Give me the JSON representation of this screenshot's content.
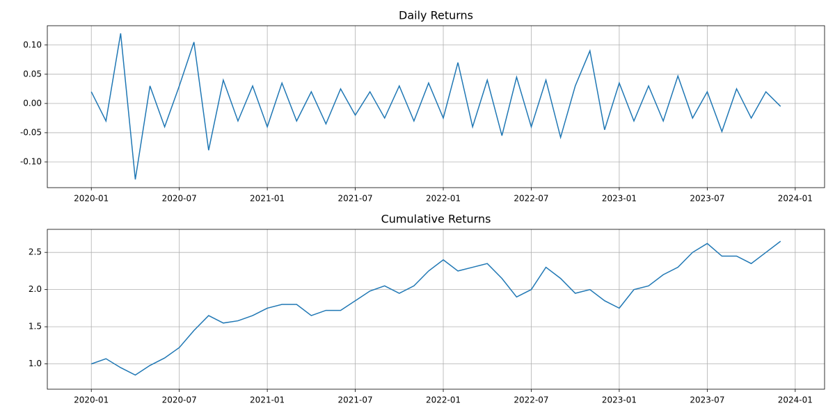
{
  "chart_data": [
    {
      "type": "line",
      "title": "Daily Returns",
      "color": "#1f77b4",
      "grid": true,
      "x": [
        "2020-01",
        "2020-02",
        "2020-03",
        "2020-04",
        "2020-05",
        "2020-06",
        "2020-07",
        "2020-08",
        "2020-09",
        "2020-10",
        "2020-11",
        "2020-12",
        "2021-01",
        "2021-02",
        "2021-03",
        "2021-04",
        "2021-05",
        "2021-06",
        "2021-07",
        "2021-08",
        "2021-09",
        "2021-10",
        "2021-11",
        "2021-12",
        "2022-01",
        "2022-02",
        "2022-03",
        "2022-04",
        "2022-05",
        "2022-06",
        "2022-07",
        "2022-08",
        "2022-09",
        "2022-10",
        "2022-11",
        "2022-12",
        "2023-01",
        "2023-02",
        "2023-03",
        "2023-04",
        "2023-05",
        "2023-06",
        "2023-07",
        "2023-08",
        "2023-09",
        "2023-10",
        "2023-11",
        "2023-12"
      ],
      "values": [
        0.02,
        -0.03,
        0.12,
        -0.13,
        0.03,
        -0.04,
        0.03,
        0.105,
        -0.08,
        0.04,
        -0.03,
        0.03,
        -0.04,
        0.035,
        -0.03,
        0.02,
        -0.035,
        0.025,
        -0.02,
        0.02,
        -0.025,
        0.03,
        -0.03,
        0.035,
        -0.025,
        0.07,
        -0.04,
        0.04,
        -0.055,
        0.045,
        -0.04,
        0.04,
        -0.058,
        0.03,
        0.09,
        -0.045,
        0.035,
        -0.03,
        0.03,
        -0.03,
        0.047,
        -0.025,
        0.02,
        -0.048,
        0.025,
        -0.025,
        0.02,
        -0.005
      ],
      "xlim": [
        "2019-10",
        "2024-03"
      ],
      "xticks": [
        "2020-01",
        "2020-07",
        "2021-01",
        "2021-07",
        "2022-01",
        "2022-07",
        "2023-01",
        "2023-07",
        "2024-01"
      ],
      "ylim": [
        -0.144,
        0.133
      ],
      "yticks": [
        {
          "value": -0.1,
          "label": "-0.10"
        },
        {
          "value": -0.05,
          "label": "-0.05"
        },
        {
          "value": 0,
          "label": "0.00"
        },
        {
          "value": 0.05,
          "label": "0.05"
        },
        {
          "value": 0.1,
          "label": "0.10"
        }
      ]
    },
    {
      "type": "line",
      "title": "Cumulative Returns",
      "color": "#1f77b4",
      "grid": true,
      "x": [
        "2020-01",
        "2020-02",
        "2020-03",
        "2020-04",
        "2020-05",
        "2020-06",
        "2020-07",
        "2020-08",
        "2020-09",
        "2020-10",
        "2020-11",
        "2020-12",
        "2021-01",
        "2021-02",
        "2021-03",
        "2021-04",
        "2021-05",
        "2021-06",
        "2021-07",
        "2021-08",
        "2021-09",
        "2021-10",
        "2021-11",
        "2021-12",
        "2022-01",
        "2022-02",
        "2022-03",
        "2022-04",
        "2022-05",
        "2022-06",
        "2022-07",
        "2022-08",
        "2022-09",
        "2022-10",
        "2022-11",
        "2022-12",
        "2023-01",
        "2023-02",
        "2023-03",
        "2023-04",
        "2023-05",
        "2023-06",
        "2023-07",
        "2023-08",
        "2023-09",
        "2023-10",
        "2023-11",
        "2023-12"
      ],
      "values": [
        1.0,
        1.07,
        0.95,
        0.85,
        0.98,
        1.08,
        1.22,
        1.45,
        1.65,
        1.55,
        1.58,
        1.65,
        1.75,
        1.8,
        1.8,
        1.65,
        1.72,
        1.72,
        1.85,
        1.98,
        2.05,
        1.95,
        2.05,
        2.25,
        2.4,
        2.25,
        2.3,
        2.35,
        2.15,
        1.9,
        2.0,
        2.3,
        2.15,
        1.95,
        2.0,
        1.85,
        1.75,
        2.0,
        2.05,
        2.2,
        2.3,
        2.5,
        2.62,
        2.45,
        2.45,
        2.35,
        2.5,
        2.65
      ],
      "xlim": [
        "2019-10",
        "2024-03"
      ],
      "xticks": [
        "2020-01",
        "2020-07",
        "2021-01",
        "2021-07",
        "2022-01",
        "2022-07",
        "2023-01",
        "2023-07",
        "2024-01"
      ],
      "ylim": [
        0.66,
        2.81
      ],
      "yticks": [
        {
          "value": 1,
          "label": "1.0"
        },
        1.5,
        {
          "value": 2,
          "label": "2.0"
        },
        2.5
      ]
    }
  ]
}
